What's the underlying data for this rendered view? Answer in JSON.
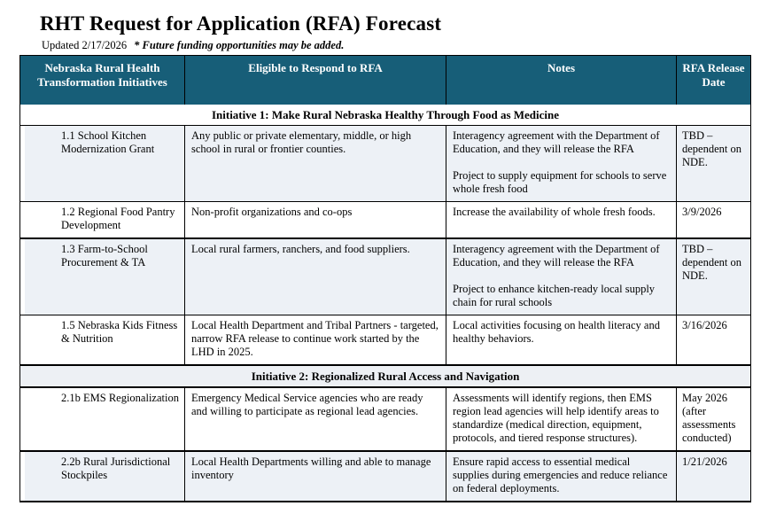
{
  "page": {
    "title": "RHT Request for Application (RFA) Forecast",
    "updated_label": "Updated 2/17/2026",
    "future_note": "* Future funding opportunities may be added."
  },
  "colors": {
    "header_bg": "#175E78",
    "header_text": "#FFFFFF",
    "shaded_row_bg": "#EDF1F6",
    "band_bg": "#EDF0F4",
    "border": "#000000"
  },
  "table": {
    "columns": [
      "Nebraska Rural Health Transformation Initiatives",
      "Eligible to Respond to RFA",
      "Notes",
      "RFA Release Date"
    ],
    "sections": [
      {
        "band": "Initiative 1: Make Rural Nebraska Healthy Through Food as Medicine",
        "emphasis": false,
        "rows": [
          {
            "initiative": "1.1 School Kitchen Modernization Grant",
            "eligible": "Any public or private elementary, middle, or high school in rural or frontier counties.",
            "notes": [
              "Interagency agreement with the Department of Education, and they will release the RFA",
              "Project to supply equipment for schools to serve whole fresh food"
            ],
            "release": "TBD – dependent on NDE.",
            "shaded": true,
            "thick_top": false
          },
          {
            "initiative": "1.2 Regional Food Pantry Development",
            "eligible": "Non-profit organizations and co-ops",
            "notes": [
              "Increase the availability of whole fresh foods."
            ],
            "release": "3/9/2026",
            "shaded": false,
            "thick_top": false
          },
          {
            "initiative": "1.3 Farm-to-School Procurement & TA",
            "eligible": "Local rural farmers, ranchers, and food suppliers.",
            "notes": [
              "Interagency agreement with the Department of Education, and they will release the RFA",
              "Project to enhance kitchen-ready local supply chain for rural schools"
            ],
            "release": "TBD – dependent on NDE.",
            "shaded": true,
            "thick_top": true
          },
          {
            "initiative": "1.5 Nebraska Kids Fitness & Nutrition",
            "eligible": "Local Health Department and Tribal Partners - targeted, narrow RFA release to continue work started by the LHD in 2025.",
            "notes": [
              "Local activities focusing on health literacy and healthy behaviors."
            ],
            "release": "3/16/2026",
            "shaded": false,
            "thick_top": false
          }
        ]
      },
      {
        "band": "Initiative 2: Regionalized Rural Access and Navigation",
        "emphasis": true,
        "rows": [
          {
            "initiative": "2.1b EMS Regionalization",
            "eligible": "Emergency Medical Service agencies who are ready and willing to participate as regional lead agencies.",
            "notes": [
              "Assessments will identify regions, then EMS region lead agencies will help identify areas to standardize (medical direction, equipment, protocols, and tiered response structures)."
            ],
            "release": "May 2026 (after assessments conducted)",
            "shaded": false,
            "thick_top": false
          },
          {
            "initiative": "2.2b Rural Jurisdictional Stockpiles",
            "eligible": "Local Health Departments willing and able to manage inventory",
            "notes": [
              "Ensure rapid access to essential medical supplies during emergencies and reduce reliance on federal deployments."
            ],
            "release": "1/21/2026",
            "shaded": true,
            "thick_top": true
          }
        ]
      }
    ]
  }
}
